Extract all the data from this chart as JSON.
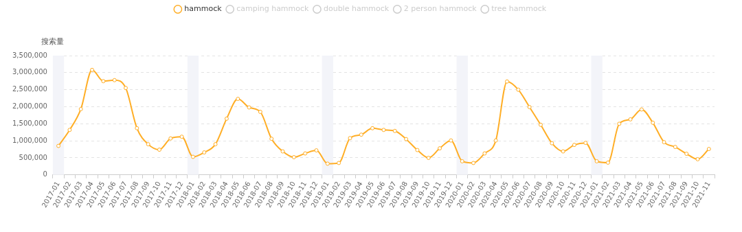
{
  "chart_data": {
    "type": "line",
    "ylabel": "搜索量",
    "categories": [
      "2017-01",
      "2017-02",
      "2017-03",
      "2017-04",
      "2017-05",
      "2017-06",
      "2017-07",
      "2017-08",
      "2017-09",
      "2017-10",
      "2017-11",
      "2017-12",
      "2018-01",
      "2018-02",
      "2018-03",
      "2018-04",
      "2018-05",
      "2018-06",
      "2018-07",
      "2018-08",
      "2018-09",
      "2018-10",
      "2018-11",
      "2018-12",
      "2019-01",
      "2019-02",
      "2019-03",
      "2019-04",
      "2019-05",
      "2019-06",
      "2019-07",
      "2019-08",
      "2019-09",
      "2019-10",
      "2019-11",
      "2019-12",
      "2020-01",
      "2020-02",
      "2020-03",
      "2020-04",
      "2020-05",
      "2020-06",
      "2020-07",
      "2020-08",
      "2020-09",
      "2020-10",
      "2020-11",
      "2020-12",
      "2021-01",
      "2021-02",
      "2021-03",
      "2021-04",
      "2021-05",
      "2021-06",
      "2021-07",
      "2021-08",
      "2021-09",
      "2021-10",
      "2021-11"
    ],
    "series": [
      {
        "name": "hammock",
        "color": "#ffae26",
        "values": [
          850000,
          1320000,
          1930000,
          3080000,
          2750000,
          2780000,
          2550000,
          1370000,
          900000,
          740000,
          1070000,
          1120000,
          530000,
          660000,
          900000,
          1650000,
          2230000,
          1980000,
          1850000,
          1060000,
          690000,
          520000,
          630000,
          720000,
          330000,
          350000,
          1080000,
          1180000,
          1370000,
          1320000,
          1290000,
          1050000,
          730000,
          500000,
          780000,
          1010000,
          400000,
          350000,
          630000,
          1010000,
          2740000,
          2500000,
          1990000,
          1470000,
          930000,
          690000,
          880000,
          940000,
          400000,
          360000,
          1500000,
          1630000,
          1920000,
          1530000,
          960000,
          820000,
          620000,
          460000,
          760000
        ]
      },
      {
        "name": "camping hammock",
        "color": "#cccccc",
        "values": [
          null,
          null,
          null,
          null,
          null,
          null,
          null,
          null,
          null,
          null,
          null,
          null,
          null,
          null,
          null,
          null,
          null,
          null,
          null,
          null,
          null,
          null,
          null,
          null,
          null,
          null,
          null,
          null,
          null,
          null,
          null,
          null,
          null,
          null,
          null,
          null,
          null,
          null,
          null,
          null,
          null,
          null,
          null,
          null,
          null,
          null,
          null,
          null,
          null,
          null,
          null,
          null,
          null,
          null,
          null,
          null,
          null,
          null,
          null
        ]
      },
      {
        "name": "double hammock",
        "color": "#cccccc",
        "values": [
          null,
          null,
          null,
          null,
          null,
          null,
          null,
          null,
          null,
          null,
          null,
          null,
          null,
          null,
          null,
          null,
          null,
          null,
          null,
          null,
          null,
          null,
          null,
          null,
          null,
          null,
          null,
          null,
          null,
          null,
          null,
          null,
          null,
          null,
          null,
          null,
          null,
          null,
          null,
          null,
          null,
          null,
          null,
          null,
          null,
          null,
          null,
          null,
          null,
          null,
          null,
          null,
          null,
          null,
          null,
          null,
          null,
          null,
          null
        ]
      },
      {
        "name": "2 person hammock",
        "color": "#cccccc",
        "values": [
          null,
          null,
          null,
          null,
          null,
          null,
          null,
          null,
          null,
          null,
          null,
          null,
          null,
          null,
          null,
          null,
          null,
          null,
          null,
          null,
          null,
          null,
          null,
          null,
          null,
          null,
          null,
          null,
          null,
          null,
          null,
          null,
          null,
          null,
          null,
          null,
          null,
          null,
          null,
          null,
          null,
          null,
          null,
          null,
          null,
          null,
          null,
          null,
          null,
          null,
          null,
          null,
          null,
          null,
          null,
          null,
          null,
          null,
          null
        ]
      },
      {
        "name": "tree hammock",
        "color": "#cccccc",
        "values": [
          null,
          null,
          null,
          null,
          null,
          null,
          null,
          null,
          null,
          null,
          null,
          null,
          null,
          null,
          null,
          null,
          null,
          null,
          null,
          null,
          null,
          null,
          null,
          null,
          null,
          null,
          null,
          null,
          null,
          null,
          null,
          null,
          null,
          null,
          null,
          null,
          null,
          null,
          null,
          null,
          null,
          null,
          null,
          null,
          null,
          null,
          null,
          null,
          null,
          null,
          null,
          null,
          null,
          null,
          null,
          null,
          null,
          null,
          null
        ]
      }
    ],
    "ylim": [
      0,
      3500000
    ],
    "yticks": [
      0,
      {
        "value": 500000,
        "label": "500,000"
      },
      {
        "value": 1000000,
        "label": "1,000,000"
      },
      {
        "value": 1500000,
        "label": "1,500,000"
      },
      {
        "value": 2000000,
        "label": "2,000,000"
      },
      {
        "value": 2500000,
        "label": "2,500,000"
      },
      {
        "value": 3000000,
        "label": "3,000,000"
      },
      {
        "value": 3500000,
        "label": "3,500,000"
      }
    ],
    "bands": [
      {
        "axis": "x",
        "from": "2017-01",
        "to": "2017-01",
        "color": "#f3f4f9"
      },
      {
        "axis": "x",
        "from": "2018-01",
        "to": "2018-01",
        "color": "#f3f4f9"
      },
      {
        "axis": "x",
        "from": "2019-01",
        "to": "2019-01",
        "color": "#f3f4f9"
      },
      {
        "axis": "x",
        "from": "2020-01",
        "to": "2020-01",
        "color": "#f3f4f9"
      },
      {
        "axis": "x",
        "from": "2021-01",
        "to": "2021-01",
        "color": "#f3f4f9"
      }
    ],
    "grid": "y",
    "legend": "top",
    "marker": "circle",
    "line_style": "solid"
  }
}
